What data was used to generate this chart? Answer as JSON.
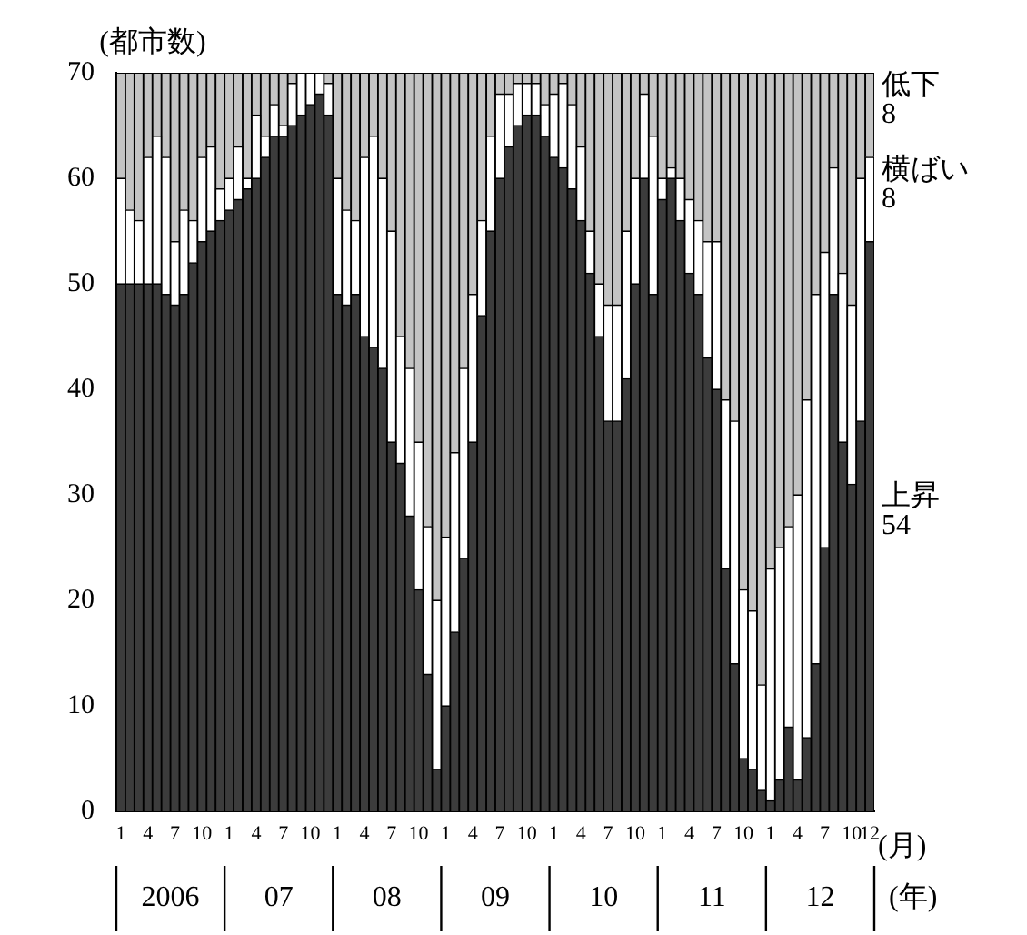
{
  "chart_data": {
    "type": "bar",
    "stacked": true,
    "ylabel": "(都市数)",
    "xlabel": "(月)",
    "annotations": [
      "2006",
      "07",
      "08",
      "09",
      "10",
      "11",
      "12",
      "(年)"
    ],
    "categories": [
      "1",
      null,
      null,
      "4",
      null,
      null,
      "7",
      null,
      null,
      "10",
      null,
      null,
      "1",
      null,
      null,
      "4",
      null,
      null,
      "7",
      null,
      null,
      "10",
      null,
      null,
      "1",
      null,
      null,
      "4",
      null,
      null,
      "7",
      null,
      null,
      "10",
      null,
      null,
      "1",
      null,
      null,
      "4",
      null,
      null,
      "7",
      null,
      null,
      "10",
      null,
      null,
      "1",
      null,
      null,
      "4",
      null,
      null,
      "7",
      null,
      null,
      "10",
      null,
      null,
      "1",
      null,
      null,
      "4",
      null,
      null,
      "7",
      null,
      null,
      "10",
      null,
      null,
      "1",
      null,
      null,
      "4",
      null,
      null,
      "7",
      null,
      null,
      "10",
      null,
      "12"
    ],
    "ylim": [
      0,
      70
    ],
    "yticks": [
      0,
      10,
      20,
      30,
      40,
      50,
      60,
      70
    ],
    "grid": false,
    "legend": false,
    "series": [
      {
        "name": "上昇",
        "color": "#3c3c3c",
        "values": [
          50,
          50,
          50,
          50,
          50,
          49,
          48,
          49,
          52,
          54,
          55,
          56,
          57,
          58,
          59,
          60,
          62,
          64,
          64,
          65,
          66,
          67,
          68,
          66,
          49,
          48,
          49,
          45,
          44,
          42,
          35,
          33,
          28,
          21,
          13,
          4,
          10,
          17,
          24,
          35,
          47,
          55,
          60,
          63,
          65,
          66,
          66,
          64,
          62,
          61,
          59,
          56,
          51,
          45,
          37,
          37,
          41,
          50,
          60,
          49,
          58,
          60,
          56,
          51,
          49,
          43,
          40,
          23,
          14,
          5,
          4,
          2,
          1,
          3,
          8,
          3,
          7,
          14,
          25,
          49,
          35,
          31,
          37,
          54
        ],
        "value_labels": [
          null,
          null,
          null,
          null,
          null,
          null,
          null,
          null,
          null,
          null,
          null,
          null,
          null,
          null,
          null,
          null,
          null,
          null,
          null,
          null,
          null,
          null,
          null,
          null,
          null,
          null,
          null,
          null,
          null,
          null,
          null,
          null,
          null,
          null,
          null,
          null,
          null,
          null,
          null,
          null,
          null,
          null,
          null,
          null,
          null,
          null,
          null,
          null,
          null,
          null,
          null,
          null,
          null,
          null,
          null,
          null,
          null,
          null,
          null,
          null,
          null,
          null,
          null,
          null,
          null,
          null,
          null,
          null,
          null,
          null,
          null,
          null,
          null,
          null,
          null,
          null,
          null,
          null,
          null,
          null,
          null,
          null,
          null,
          "54"
        ]
      },
      {
        "name": "横ばい",
        "color": "#ffffff",
        "values": [
          10,
          7,
          6,
          12,
          14,
          13,
          6,
          8,
          4,
          8,
          8,
          3,
          3,
          5,
          1,
          6,
          2,
          3,
          1,
          4,
          4,
          3,
          2,
          3,
          11,
          9,
          7,
          17,
          20,
          18,
          20,
          12,
          14,
          14,
          14,
          16,
          16,
          17,
          18,
          14,
          9,
          9,
          8,
          5,
          4,
          3,
          3,
          3,
          6,
          8,
          8,
          7,
          4,
          5,
          11,
          11,
          14,
          10,
          8,
          15,
          2,
          1,
          4,
          7,
          7,
          11,
          14,
          16,
          23,
          16,
          15,
          10,
          22,
          22,
          19,
          27,
          32,
          35,
          28,
          12,
          16,
          17,
          23,
          8
        ],
        "value_labels": [
          null,
          null,
          null,
          null,
          null,
          null,
          null,
          null,
          null,
          null,
          null,
          null,
          null,
          null,
          null,
          null,
          null,
          null,
          null,
          null,
          null,
          null,
          null,
          null,
          null,
          null,
          null,
          null,
          null,
          null,
          null,
          null,
          null,
          null,
          null,
          null,
          null,
          null,
          null,
          null,
          null,
          null,
          null,
          null,
          null,
          null,
          null,
          null,
          null,
          null,
          null,
          null,
          null,
          null,
          null,
          null,
          null,
          null,
          null,
          null,
          null,
          null,
          null,
          null,
          null,
          null,
          null,
          null,
          null,
          null,
          null,
          null,
          null,
          null,
          null,
          null,
          null,
          null,
          null,
          null,
          null,
          null,
          null,
          "8"
        ]
      },
      {
        "name": "低下",
        "color": "#c4c4c4",
        "values": [
          10,
          13,
          14,
          8,
          6,
          8,
          16,
          13,
          14,
          8,
          7,
          11,
          10,
          7,
          10,
          4,
          6,
          3,
          5,
          1,
          0,
          0,
          0,
          1,
          10,
          13,
          14,
          8,
          6,
          10,
          15,
          25,
          28,
          35,
          43,
          50,
          44,
          36,
          28,
          21,
          14,
          6,
          2,
          2,
          1,
          1,
          1,
          3,
          2,
          1,
          3,
          7,
          15,
          20,
          22,
          22,
          15,
          10,
          2,
          6,
          10,
          9,
          10,
          12,
          14,
          16,
          16,
          31,
          33,
          49,
          51,
          58,
          47,
          45,
          43,
          40,
          31,
          21,
          17,
          9,
          19,
          22,
          10,
          8
        ],
        "value_labels": [
          null,
          null,
          null,
          null,
          null,
          null,
          null,
          null,
          null,
          null,
          null,
          null,
          null,
          null,
          null,
          null,
          null,
          null,
          null,
          null,
          null,
          null,
          null,
          null,
          null,
          null,
          null,
          null,
          null,
          null,
          null,
          null,
          null,
          null,
          null,
          null,
          null,
          null,
          null,
          null,
          null,
          null,
          null,
          null,
          null,
          null,
          null,
          null,
          null,
          null,
          null,
          null,
          null,
          null,
          null,
          null,
          null,
          null,
          null,
          null,
          null,
          null,
          null,
          null,
          null,
          null,
          null,
          null,
          null,
          null,
          null,
          null,
          null,
          null,
          null,
          null,
          null,
          null,
          null,
          null,
          null,
          null,
          null,
          "8"
        ]
      }
    ]
  }
}
